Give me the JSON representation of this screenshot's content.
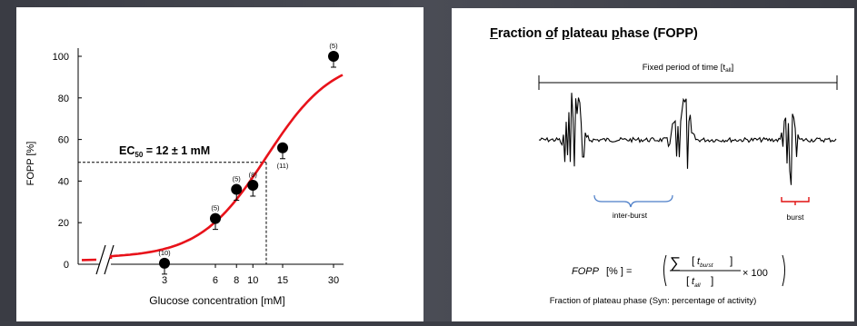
{
  "left_chart": {
    "ylabel": "FOPP [%]",
    "xlabel": "Glucose concentration  [mM]",
    "yticks": [
      "0",
      "20",
      "40",
      "60",
      "80",
      "100"
    ],
    "xticks": [
      "3",
      "6",
      "8",
      "10",
      "15",
      "30"
    ],
    "ec50_label": "EC",
    "ec50_sub": "50",
    "ec50_value": " = 12 ± 1 mM",
    "point_labels": [
      "(10)",
      "(5)",
      "(5)",
      "(8)",
      "(11)",
      "(5)"
    ]
  },
  "chart_data": {
    "type": "scatter",
    "xlabel": "Glucose concentration  [mM]",
    "ylabel": "FOPP [%]",
    "ylim": [
      0,
      100
    ],
    "x_scale": "log (axis break near 0)",
    "series": [
      {
        "x": [
          3,
          6,
          8,
          10,
          15,
          30
        ],
        "y": [
          0.5,
          22,
          36,
          38,
          56,
          100
        ],
        "n": [
          "(10)",
          "(5)",
          "(5)",
          "(8)",
          "(11)",
          "(5)"
        ]
      }
    ],
    "fit_curve": "sigmoid",
    "ec50": 12,
    "ec50_sem": 1,
    "ec50_y": 49,
    "colors": {
      "points": "#000000",
      "fit": "#e8121a"
    },
    "grid": false
  },
  "right_panel": {
    "title_parts": [
      {
        "text": "F",
        "u": true
      },
      {
        "text": "raction ",
        "u": false
      },
      {
        "text": "o",
        "u": true
      },
      {
        "text": "f ",
        "u": false
      },
      {
        "text": "p",
        "u": true
      },
      {
        "text": "lateau ",
        "u": false
      },
      {
        "text": "p",
        "u": true
      },
      {
        "text": "hase (FOPP)",
        "u": false
      }
    ],
    "period_label": "Fixed period of time [t",
    "period_sub": "all",
    "period_close": "]",
    "interburst_label": "inter-burst",
    "burst_label": "burst",
    "formula_lhs": "FOPP",
    "formula_unit": "[% ] =",
    "formula_sum": "∑",
    "formula_t": "t",
    "formula_burst": "burst",
    "formula_all": "all",
    "formula_times": "× 100",
    "caption": "Fraction of plateau phase (Syn: percentage of activity)",
    "colors": {
      "interburst": "#4a7cc7",
      "burst": "#e01010",
      "trace": "#000000"
    }
  }
}
